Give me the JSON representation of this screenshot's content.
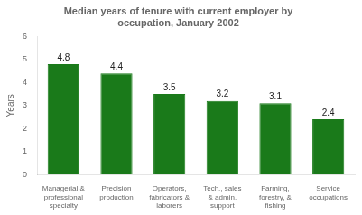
{
  "chart_data": {
    "type": "bar",
    "title": "Median years of tenure with current employer by\noccupation, January 2002",
    "categories": [
      "Managerial &\nprofessional\nspecialty",
      "Precision\nproduction",
      "Operators,\nfabricators &\nlaborers",
      "Tech., sales\n& admin.\nsupport",
      "Farming,\nforestry, &\nfishing",
      "Service\noccupations"
    ],
    "values": [
      4.8,
      4.4,
      3.5,
      3.2,
      3.1,
      2.4
    ],
    "color": "#1a7a1a",
    "ylabel": "Years",
    "ylim": [
      0,
      6
    ],
    "yticks": [
      0,
      1,
      2,
      3,
      4,
      5,
      6
    ],
    "grid": false,
    "data_labels": true
  }
}
